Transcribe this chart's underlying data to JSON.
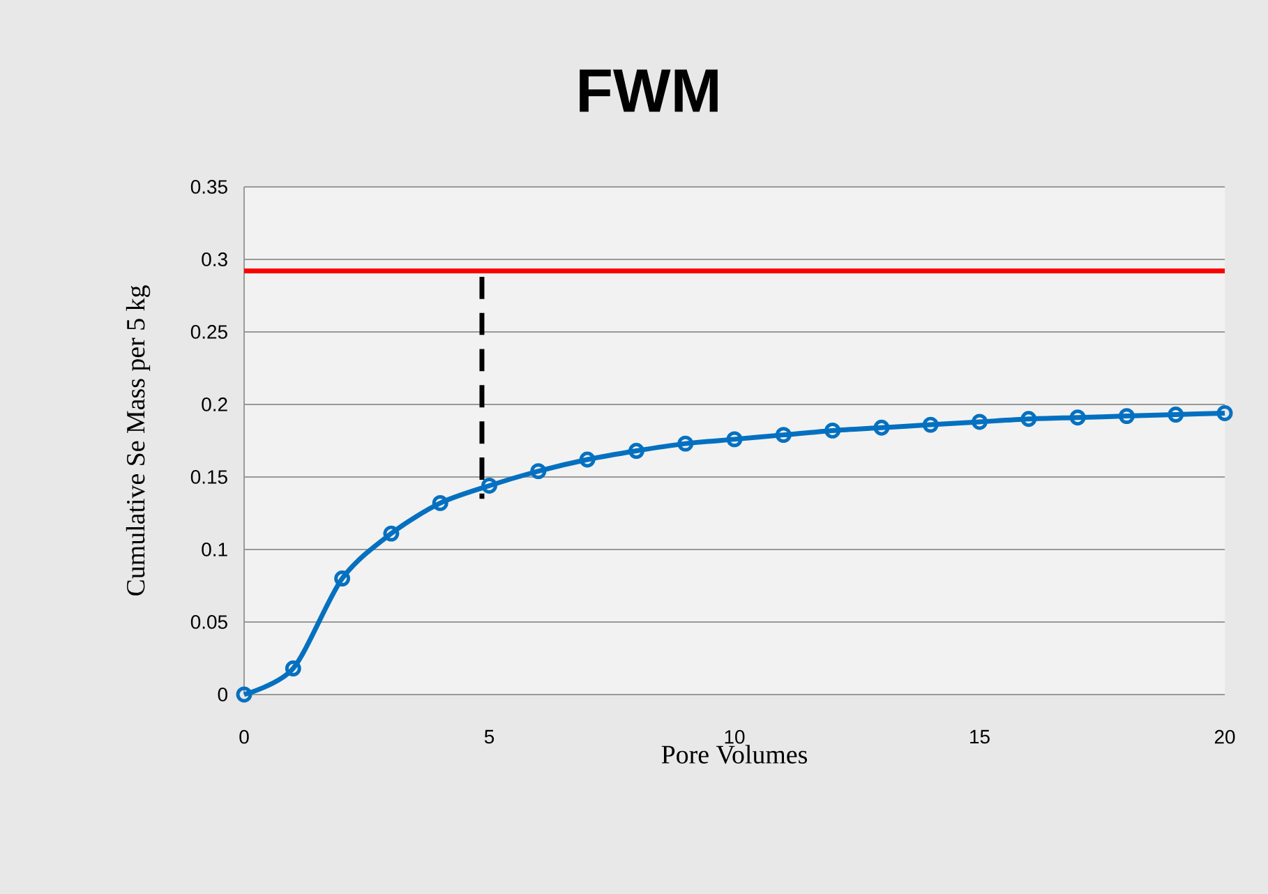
{
  "chart_data": {
    "type": "line",
    "title": "FWM",
    "xlabel": "Pore Volumes",
    "ylabel": "Cumulative Se  Mass per 5 kg",
    "xlim": [
      0,
      20
    ],
    "xticks": [
      0,
      5,
      10,
      15,
      20
    ],
    "ylim": [
      0,
      0.35
    ],
    "yticks": [
      0,
      0.05,
      0.1,
      0.15,
      0.2,
      0.25,
      0.3,
      0.35
    ],
    "grid": "y",
    "series": [
      {
        "color": "#0070c0",
        "marker": "circle",
        "line_style": "solid",
        "x": [
          0,
          1,
          2,
          3,
          4,
          5,
          6,
          7,
          8,
          9,
          10,
          11,
          12,
          13,
          14,
          15,
          16,
          17,
          18,
          19,
          20
        ],
        "values": [
          0,
          0.018,
          0.08,
          0.111,
          0.132,
          0.144,
          0.154,
          0.162,
          0.168,
          0.173,
          0.176,
          0.179,
          0.182,
          0.184,
          0.186,
          0.188,
          0.19,
          0.191,
          0.192,
          0.193,
          0.194
        ]
      },
      {
        "color": "#000000",
        "marker": "none",
        "line_style": "dashed",
        "x": [
          4.85,
          4.85
        ],
        "values": [
          0.288,
          0.135
        ]
      }
    ],
    "ref_lines": [
      {
        "axis": "y",
        "value": 0.292,
        "color": "#ff0000"
      }
    ]
  }
}
